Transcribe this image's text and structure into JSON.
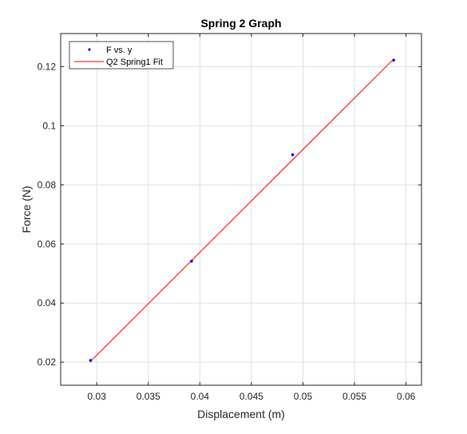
{
  "chart_data": {
    "type": "scatter",
    "title": "Spring 2 Graph",
    "xlabel": "Displacement (m)",
    "ylabel": "Force (N)",
    "xlim": [
      0.0265,
      0.0615
    ],
    "ylim": [
      0.0122,
      0.1312
    ],
    "xticks": [
      0.03,
      0.035,
      0.04,
      0.045,
      0.05,
      0.055,
      0.06
    ],
    "xtick_labels": [
      "0.03",
      "0.035",
      "0.04",
      "0.045",
      "0.05",
      "0.055",
      "0.06"
    ],
    "yticks": [
      0.02,
      0.04,
      0.06,
      0.08,
      0.1,
      0.12
    ],
    "ytick_labels": [
      "0.02",
      "0.04",
      "0.06",
      "0.08",
      "0.1",
      "0.12"
    ],
    "grid": true,
    "legend_position": "top-left",
    "series": [
      {
        "name": "F vs. y",
        "kind": "scatter",
        "color": "#0000ff",
        "x": [
          0.0294,
          0.0392,
          0.049,
          0.0588
        ],
        "y": [
          0.0206,
          0.0542,
          0.0902,
          0.1222
        ]
      },
      {
        "name": "Q2 Spring1 Fit",
        "kind": "line",
        "color": "#ff0000",
        "x": [
          0.0294,
          0.0588
        ],
        "y": [
          0.0203,
          0.1226
        ]
      }
    ]
  }
}
